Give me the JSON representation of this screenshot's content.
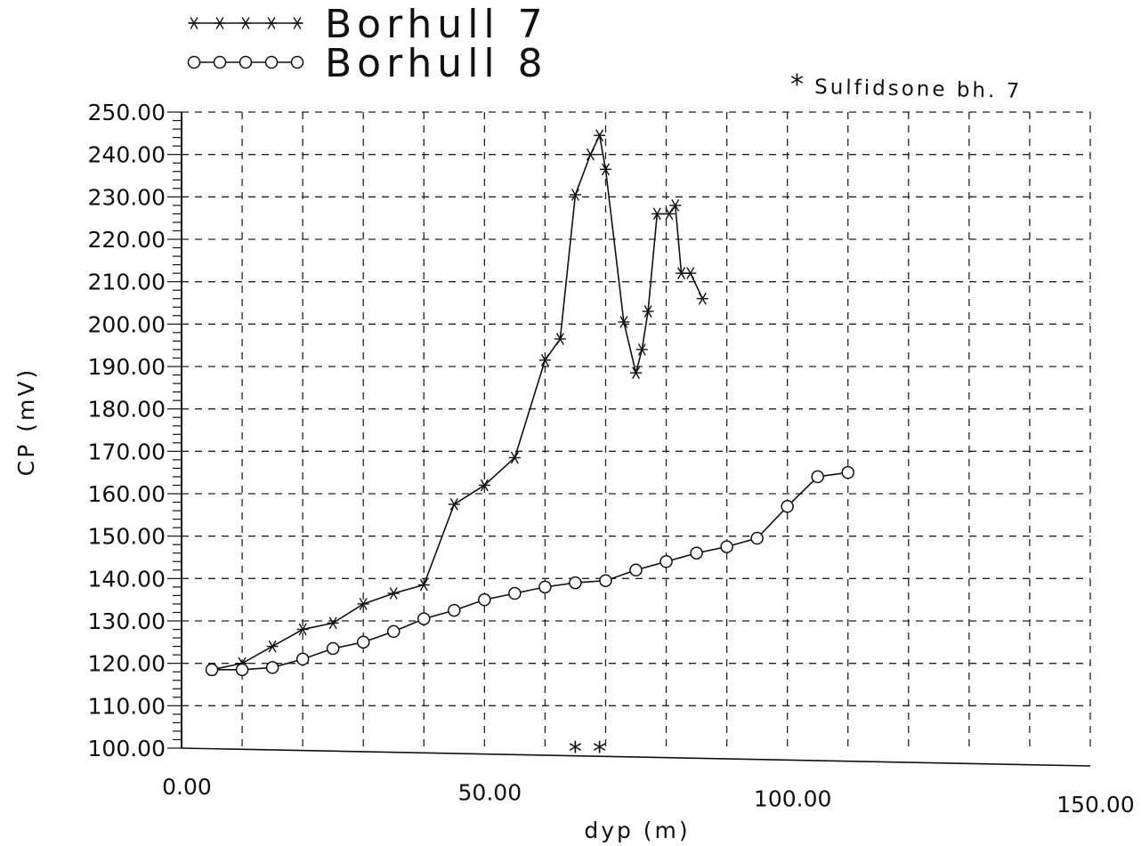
{
  "chart_data": {
    "type": "line",
    "xlabel": "dyp (m)",
    "ylabel": "CP (mV)",
    "xlim": [
      0,
      150
    ],
    "ylim": [
      100,
      250
    ],
    "x_ticks": [
      0,
      50,
      100,
      150
    ],
    "x_tick_labels": [
      "0.00",
      "50.00",
      "100.00",
      "150.00"
    ],
    "y_ticks": [
      100,
      110,
      120,
      130,
      140,
      150,
      160,
      170,
      180,
      190,
      200,
      210,
      220,
      230,
      240,
      250
    ],
    "y_tick_labels": [
      "100.00",
      "110.00",
      "120.00",
      "130.00",
      "140.00",
      "150.00",
      "160.00",
      "170.00",
      "180.00",
      "190.00",
      "200.00",
      "210.00",
      "220.00",
      "230.00",
      "240.00",
      "250.00"
    ],
    "grid": true,
    "legend_position": "top-left",
    "series": [
      {
        "name": "Borhull 7",
        "marker": "asterisk",
        "x": [
          5,
          10,
          15,
          20,
          25,
          30,
          35,
          40,
          45,
          50,
          55,
          60,
          62.5,
          65,
          67.5,
          69,
          70,
          73,
          75,
          76,
          77,
          78.5,
          80.5,
          81.5,
          82.5,
          84,
          86
        ],
        "y": [
          118.5,
          120,
          124,
          128,
          129.5,
          134,
          136.5,
          138.5,
          157.5,
          162,
          168.5,
          191.5,
          196.5,
          230.5,
          240,
          244.5,
          236.5,
          200.5,
          188.5,
          194,
          203,
          226,
          226,
          228,
          212,
          212,
          206
        ]
      },
      {
        "name": "Borhull 8",
        "marker": "circle",
        "x": [
          5,
          10,
          15,
          20,
          25,
          30,
          35,
          40,
          45,
          50,
          55,
          60,
          65,
          70,
          75,
          80,
          85,
          90,
          95,
          100,
          105,
          110
        ],
        "y": [
          118.5,
          118.5,
          119,
          121,
          123.5,
          125,
          127.5,
          130.5,
          132.5,
          135,
          136.5,
          138,
          139,
          139.5,
          142,
          144,
          146,
          147.5,
          149.5,
          157,
          164,
          165
        ]
      }
    ],
    "annotation": {
      "label": "Sulfidsone bh. 7",
      "symbol": "*",
      "x": [
        65,
        69
      ],
      "y": [
        100,
        100
      ]
    }
  }
}
